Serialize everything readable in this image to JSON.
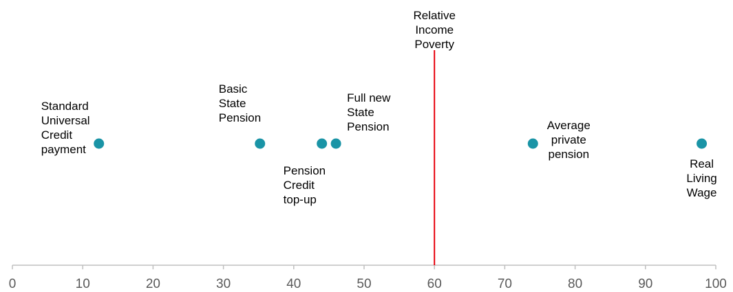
{
  "chart_data": {
    "type": "scatter",
    "title": "",
    "xlabel": "",
    "ylabel": "",
    "xlim": [
      0,
      100
    ],
    "xticks": [
      0,
      10,
      20,
      30,
      40,
      50,
      60,
      70,
      80,
      90,
      100
    ],
    "grid": false,
    "legend": "none",
    "point_color": "#1a94a6",
    "axis_color": "#bfbfbf",
    "reference_line": {
      "x": 60,
      "label": [
        "Relative",
        "Income",
        "Poverty"
      ],
      "color": "#e8000b"
    },
    "points": [
      {
        "x": 12.3,
        "label": [
          "Standard",
          "Universal",
          "Credit",
          "payment"
        ]
      },
      {
        "x": 35.2,
        "label": [
          "Basic",
          "State",
          "Pension"
        ]
      },
      {
        "x": 44.0,
        "label": [
          "Pension",
          "Credit",
          "top-up"
        ]
      },
      {
        "x": 46.0,
        "label": [
          "Full new",
          "State",
          "Pension"
        ]
      },
      {
        "x": 74.0,
        "label": [
          "Average",
          "private",
          "pension"
        ]
      },
      {
        "x": 98.0,
        "label": [
          "Real",
          "Living",
          "Wage"
        ]
      }
    ]
  }
}
